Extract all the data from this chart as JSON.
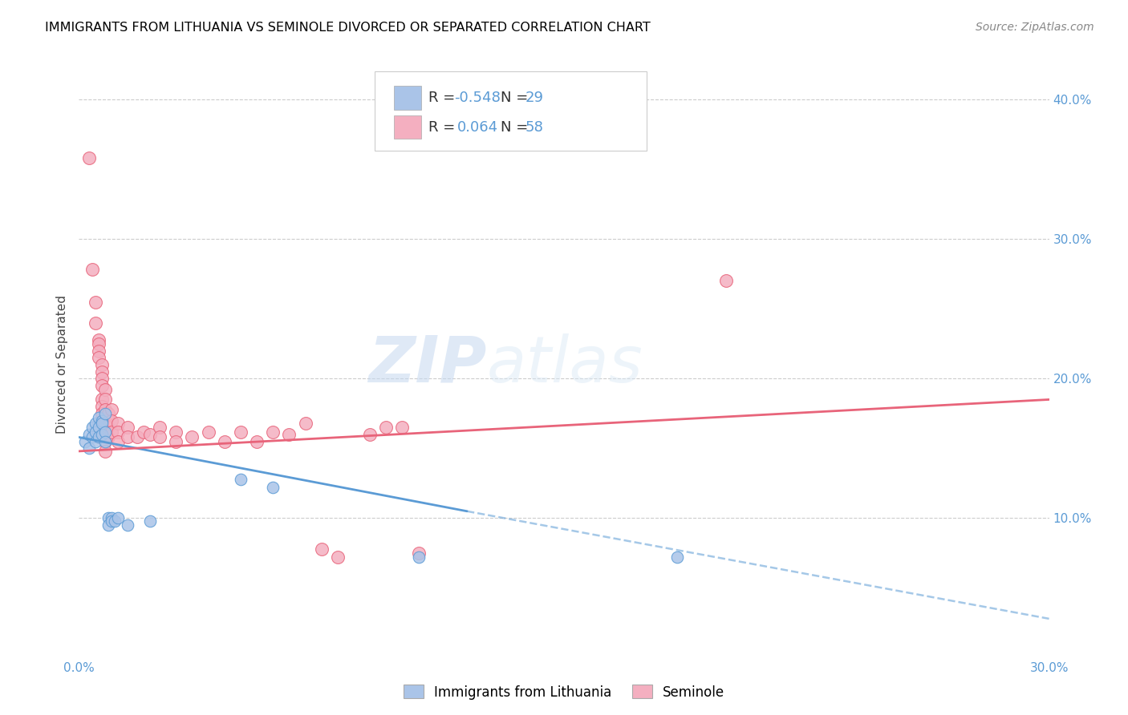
{
  "title": "IMMIGRANTS FROM LITHUANIA VS SEMINOLE DIVORCED OR SEPARATED CORRELATION CHART",
  "source": "Source: ZipAtlas.com",
  "ylabel": "Divorced or Separated",
  "xlim": [
    0.0,
    0.3
  ],
  "ylim": [
    0.0,
    0.42
  ],
  "xticks": [
    0.0,
    0.05,
    0.1,
    0.15,
    0.2,
    0.25,
    0.3
  ],
  "yticks": [
    0.1,
    0.2,
    0.3,
    0.4
  ],
  "xticklabels": [
    "0.0%",
    "",
    "",
    "",
    "",
    "",
    "30.0%"
  ],
  "blue_color": "#aac4e8",
  "pink_color": "#f4afc0",
  "blue_line_color": "#5b9bd5",
  "pink_line_color": "#e8647a",
  "blue_scatter": [
    [
      0.002,
      0.155
    ],
    [
      0.003,
      0.16
    ],
    [
      0.003,
      0.15
    ],
    [
      0.004,
      0.165
    ],
    [
      0.004,
      0.158
    ],
    [
      0.005,
      0.168
    ],
    [
      0.005,
      0.162
    ],
    [
      0.005,
      0.155
    ],
    [
      0.006,
      0.172
    ],
    [
      0.006,
      0.165
    ],
    [
      0.006,
      0.158
    ],
    [
      0.007,
      0.17
    ],
    [
      0.007,
      0.16
    ],
    [
      0.007,
      0.168
    ],
    [
      0.008,
      0.175
    ],
    [
      0.008,
      0.162
    ],
    [
      0.008,
      0.155
    ],
    [
      0.009,
      0.1
    ],
    [
      0.009,
      0.095
    ],
    [
      0.01,
      0.1
    ],
    [
      0.01,
      0.098
    ],
    [
      0.011,
      0.098
    ],
    [
      0.012,
      0.1
    ],
    [
      0.015,
      0.095
    ],
    [
      0.022,
      0.098
    ],
    [
      0.05,
      0.128
    ],
    [
      0.06,
      0.122
    ],
    [
      0.105,
      0.072
    ],
    [
      0.185,
      0.072
    ]
  ],
  "pink_scatter": [
    [
      0.003,
      0.358
    ],
    [
      0.004,
      0.278
    ],
    [
      0.005,
      0.255
    ],
    [
      0.005,
      0.24
    ],
    [
      0.006,
      0.228
    ],
    [
      0.006,
      0.225
    ],
    [
      0.006,
      0.22
    ],
    [
      0.006,
      0.215
    ],
    [
      0.007,
      0.21
    ],
    [
      0.007,
      0.205
    ],
    [
      0.007,
      0.2
    ],
    [
      0.007,
      0.195
    ],
    [
      0.007,
      0.185
    ],
    [
      0.007,
      0.18
    ],
    [
      0.007,
      0.175
    ],
    [
      0.008,
      0.192
    ],
    [
      0.008,
      0.185
    ],
    [
      0.008,
      0.178
    ],
    [
      0.008,
      0.17
    ],
    [
      0.008,
      0.165
    ],
    [
      0.008,
      0.16
    ],
    [
      0.008,
      0.155
    ],
    [
      0.008,
      0.148
    ],
    [
      0.009,
      0.175
    ],
    [
      0.009,
      0.165
    ],
    [
      0.009,
      0.158
    ],
    [
      0.01,
      0.178
    ],
    [
      0.01,
      0.17
    ],
    [
      0.01,
      0.162
    ],
    [
      0.012,
      0.168
    ],
    [
      0.012,
      0.162
    ],
    [
      0.012,
      0.155
    ],
    [
      0.015,
      0.165
    ],
    [
      0.015,
      0.158
    ],
    [
      0.018,
      0.158
    ],
    [
      0.02,
      0.162
    ],
    [
      0.022,
      0.16
    ],
    [
      0.025,
      0.165
    ],
    [
      0.025,
      0.158
    ],
    [
      0.03,
      0.162
    ],
    [
      0.03,
      0.155
    ],
    [
      0.035,
      0.158
    ],
    [
      0.04,
      0.162
    ],
    [
      0.045,
      0.155
    ],
    [
      0.05,
      0.162
    ],
    [
      0.055,
      0.155
    ],
    [
      0.06,
      0.162
    ],
    [
      0.065,
      0.16
    ],
    [
      0.07,
      0.168
    ],
    [
      0.075,
      0.078
    ],
    [
      0.08,
      0.072
    ],
    [
      0.09,
      0.16
    ],
    [
      0.095,
      0.165
    ],
    [
      0.1,
      0.165
    ],
    [
      0.105,
      0.075
    ],
    [
      0.2,
      0.27
    ]
  ],
  "blue_trendline_solid": [
    [
      0.0,
      0.158
    ],
    [
      0.12,
      0.105
    ]
  ],
  "blue_trendline_dash": [
    [
      0.12,
      0.105
    ],
    [
      0.3,
      0.028
    ]
  ],
  "pink_trendline": [
    [
      0.0,
      0.148
    ],
    [
      0.3,
      0.185
    ]
  ]
}
